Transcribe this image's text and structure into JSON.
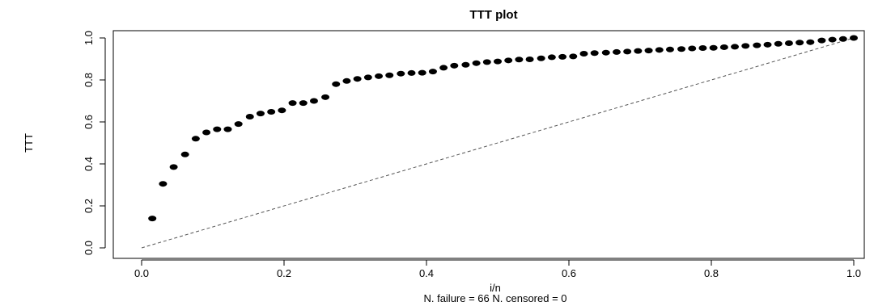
{
  "chart_data": {
    "type": "scatter",
    "title": "TTT plot",
    "xlabel": "i/n",
    "ylabel": "TTT",
    "subtitle": "N. failure = 66 N. censored = 0",
    "xlim": [
      0.0,
      1.0
    ],
    "ylim": [
      0.0,
      1.0
    ],
    "x_ticks": [
      0.0,
      0.2,
      0.4,
      0.6,
      0.8,
      1.0
    ],
    "x_tick_labels": [
      "0.0",
      "0.2",
      "0.4",
      "0.6",
      "0.8",
      "1.0"
    ],
    "y_ticks": [
      0.0,
      0.2,
      0.4,
      0.6,
      0.8,
      1.0
    ],
    "y_tick_labels": [
      "0.0",
      "0.2",
      "0.4",
      "0.6",
      "0.8",
      "1.0"
    ],
    "grid": false,
    "reference_line": {
      "x": [
        0.0,
        1.0
      ],
      "y": [
        0.0,
        1.0
      ],
      "style": "dashed"
    },
    "series": [
      {
        "x": [
          0.015,
          0.03,
          0.045,
          0.061,
          0.076,
          0.091,
          0.106,
          0.121,
          0.136,
          0.152,
          0.167,
          0.182,
          0.197,
          0.212,
          0.227,
          0.242,
          0.258,
          0.273,
          0.288,
          0.303,
          0.318,
          0.333,
          0.348,
          0.364,
          0.379,
          0.394,
          0.409,
          0.424,
          0.439,
          0.455,
          0.47,
          0.485,
          0.5,
          0.515,
          0.53,
          0.545,
          0.561,
          0.576,
          0.591,
          0.606,
          0.621,
          0.636,
          0.652,
          0.667,
          0.682,
          0.697,
          0.712,
          0.727,
          0.742,
          0.758,
          0.773,
          0.788,
          0.803,
          0.818,
          0.833,
          0.848,
          0.864,
          0.879,
          0.894,
          0.909,
          0.924,
          0.939,
          0.955,
          0.97,
          0.985,
          1.0
        ],
        "y": [
          0.14,
          0.305,
          0.385,
          0.445,
          0.52,
          0.55,
          0.565,
          0.565,
          0.59,
          0.625,
          0.64,
          0.648,
          0.655,
          0.69,
          0.69,
          0.7,
          0.718,
          0.78,
          0.795,
          0.805,
          0.812,
          0.818,
          0.822,
          0.83,
          0.833,
          0.834,
          0.84,
          0.858,
          0.868,
          0.872,
          0.88,
          0.885,
          0.888,
          0.893,
          0.897,
          0.898,
          0.903,
          0.908,
          0.91,
          0.912,
          0.925,
          0.928,
          0.93,
          0.933,
          0.935,
          0.938,
          0.94,
          0.943,
          0.945,
          0.947,
          0.95,
          0.952,
          0.953,
          0.956,
          0.958,
          0.962,
          0.965,
          0.968,
          0.972,
          0.975,
          0.978,
          0.98,
          0.988,
          0.992,
          0.995,
          1.0
        ]
      }
    ]
  }
}
